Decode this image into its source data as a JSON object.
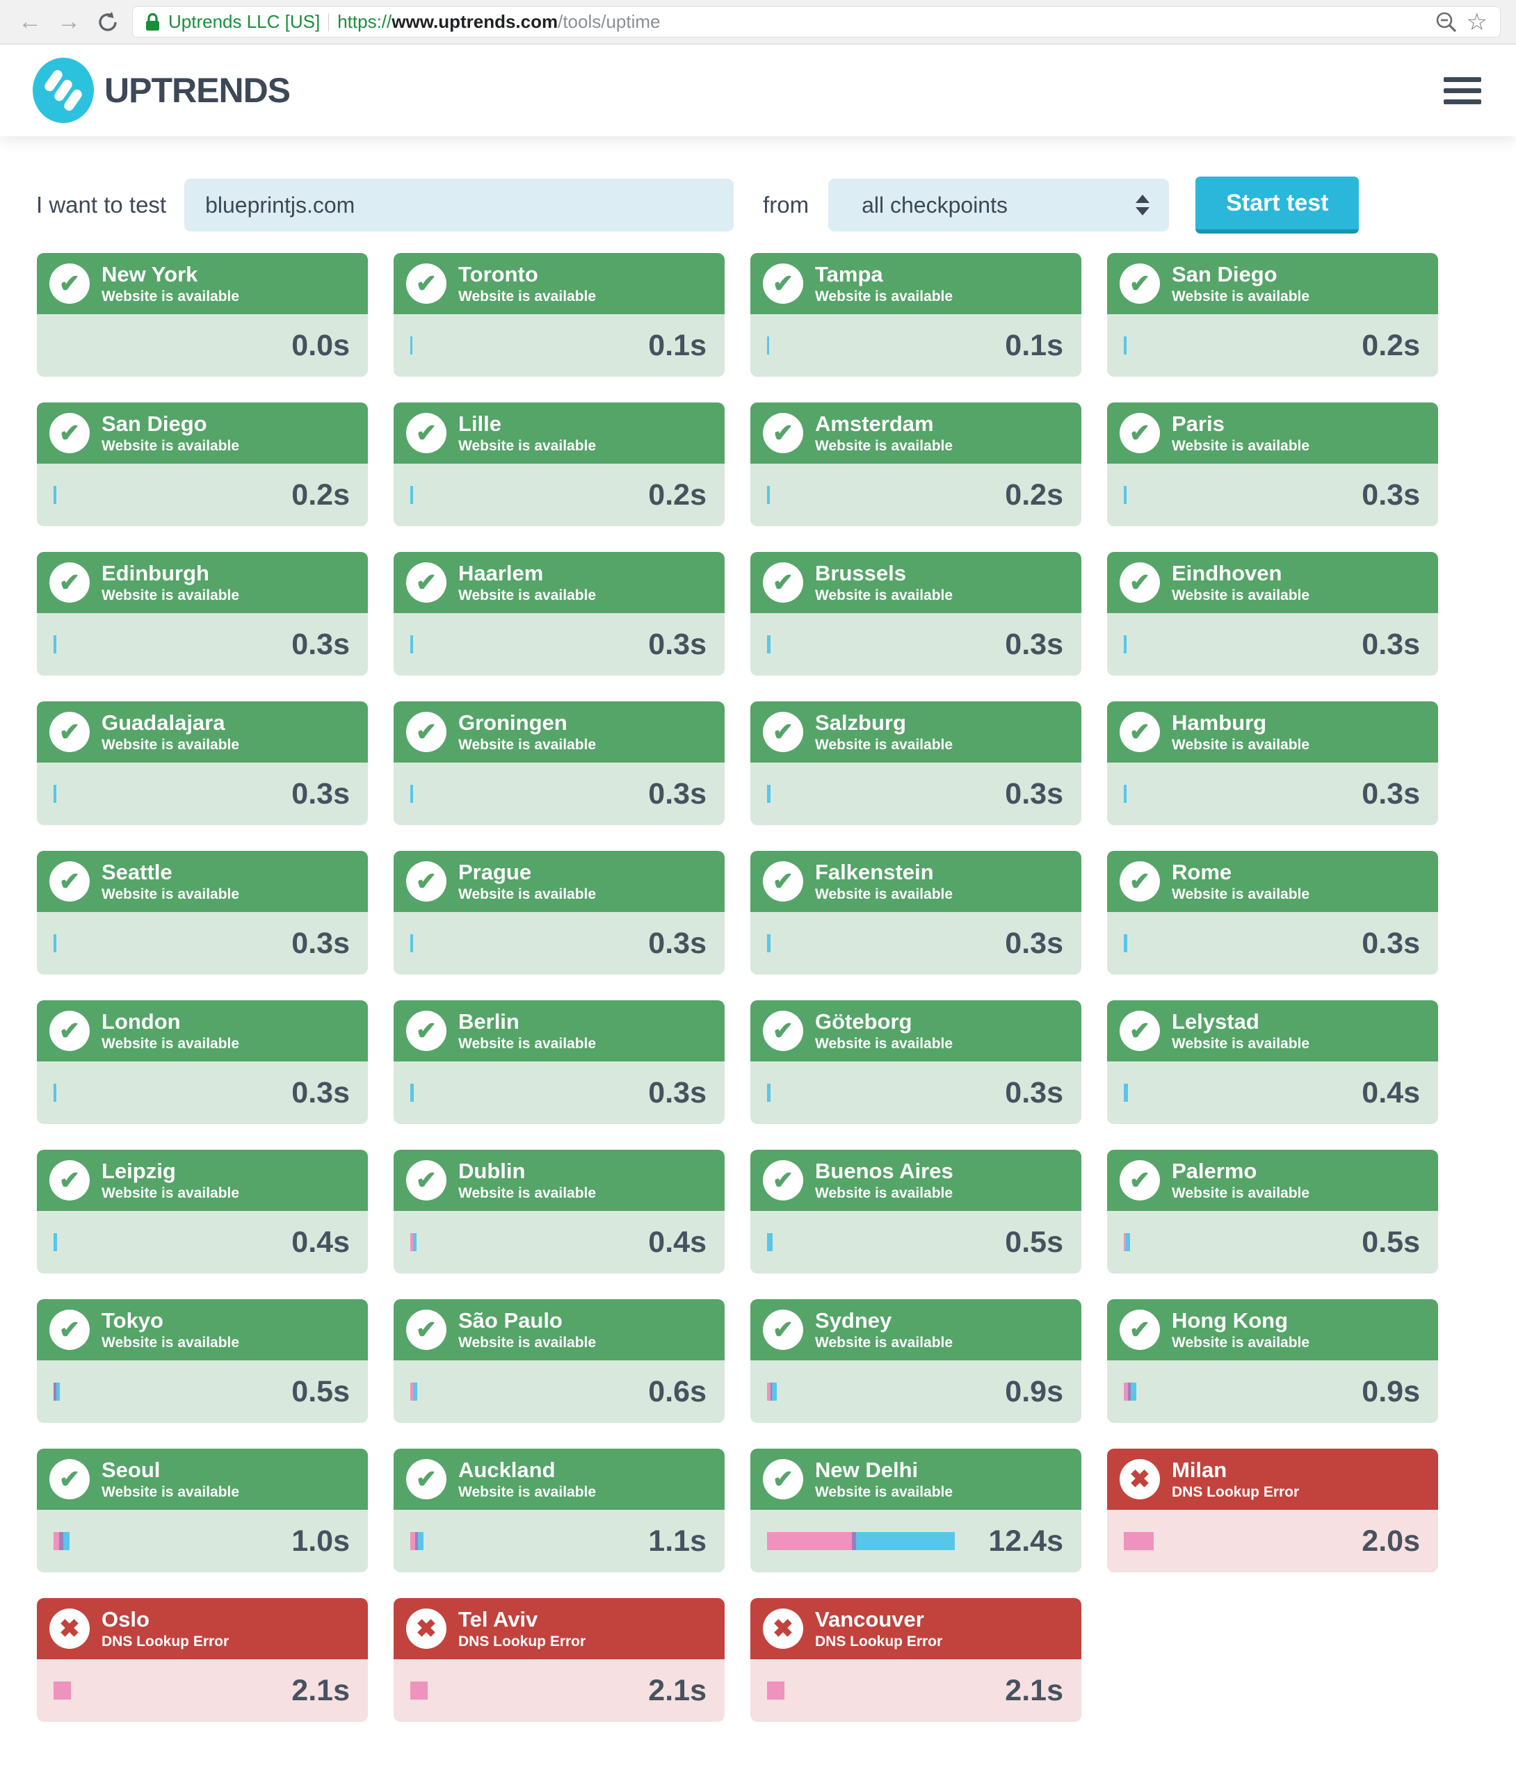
{
  "browser": {
    "ev_name": "Uptrends LLC [US]",
    "url_scheme": "https://",
    "url_host": "www.uptrends.com",
    "url_path": "/tools/uptime"
  },
  "header": {
    "brand": "UPTRENDS"
  },
  "form": {
    "label": "I want to test",
    "input_value": "blueprintjs.com",
    "from_label": "from",
    "select_value": "all checkpoints",
    "button_label": "Start test"
  },
  "icons": {
    "success_glyph": "✔",
    "error_glyph": "✖",
    "star_glyph": "☆"
  },
  "colors": {
    "header_ok": "#55a468",
    "body_ok": "#d9e8dc",
    "header_error": "#c2423d",
    "body_error": "#f6e0e1",
    "bar_blue": "#57c6e9",
    "bar_pink": "#ef92bd",
    "bar_purple": "#9b7ec0",
    "accent_button": "#2ab7d9",
    "input_bg": "#ddedf4",
    "brand_dark": "#3d4857",
    "logo_teal": "#2cc2de",
    "ev_green": "#1a8e3c"
  },
  "cards": [
    {
      "city": "New York",
      "status": "Website is available",
      "time": "0.0s",
      "state": "ok",
      "bar": []
    },
    {
      "city": "Toronto",
      "status": "Website is available",
      "time": "0.1s",
      "state": "ok",
      "bar": [
        {
          "c": "blue",
          "w": 3
        }
      ]
    },
    {
      "city": "Tampa",
      "status": "Website is available",
      "time": "0.1s",
      "state": "ok",
      "bar": [
        {
          "c": "blue",
          "w": 3
        }
      ]
    },
    {
      "city": "San Diego",
      "status": "Website is available",
      "time": "0.2s",
      "state": "ok",
      "bar": [
        {
          "c": "blue",
          "w": 4
        }
      ]
    },
    {
      "city": "San Diego",
      "status": "Website is available",
      "time": "0.2s",
      "state": "ok",
      "bar": [
        {
          "c": "blue",
          "w": 4
        }
      ]
    },
    {
      "city": "Lille",
      "status": "Website is available",
      "time": "0.2s",
      "state": "ok",
      "bar": [
        {
          "c": "blue",
          "w": 4
        }
      ]
    },
    {
      "city": "Amsterdam",
      "status": "Website is available",
      "time": "0.2s",
      "state": "ok",
      "bar": [
        {
          "c": "blue",
          "w": 4
        }
      ]
    },
    {
      "city": "Paris",
      "status": "Website is available",
      "time": "0.3s",
      "state": "ok",
      "bar": [
        {
          "c": "blue",
          "w": 4
        }
      ]
    },
    {
      "city": "Edinburgh",
      "status": "Website is available",
      "time": "0.3s",
      "state": "ok",
      "bar": [
        {
          "c": "blue",
          "w": 4
        }
      ]
    },
    {
      "city": "Haarlem",
      "status": "Website is available",
      "time": "0.3s",
      "state": "ok",
      "bar": [
        {
          "c": "blue",
          "w": 4
        }
      ]
    },
    {
      "city": "Brussels",
      "status": "Website is available",
      "time": "0.3s",
      "state": "ok",
      "bar": [
        {
          "c": "blue",
          "w": 5
        }
      ]
    },
    {
      "city": "Eindhoven",
      "status": "Website is available",
      "time": "0.3s",
      "state": "ok",
      "bar": [
        {
          "c": "blue",
          "w": 4
        }
      ]
    },
    {
      "city": "Guadalajara",
      "status": "Website is available",
      "time": "0.3s",
      "state": "ok",
      "bar": [
        {
          "c": "blue",
          "w": 4
        }
      ]
    },
    {
      "city": "Groningen",
      "status": "Website is available",
      "time": "0.3s",
      "state": "ok",
      "bar": [
        {
          "c": "blue",
          "w": 4
        }
      ]
    },
    {
      "city": "Salzburg",
      "status": "Website is available",
      "time": "0.3s",
      "state": "ok",
      "bar": [
        {
          "c": "blue",
          "w": 5
        }
      ]
    },
    {
      "city": "Hamburg",
      "status": "Website is available",
      "time": "0.3s",
      "state": "ok",
      "bar": [
        {
          "c": "blue",
          "w": 4
        }
      ]
    },
    {
      "city": "Seattle",
      "status": "Website is available",
      "time": "0.3s",
      "state": "ok",
      "bar": [
        {
          "c": "blue",
          "w": 4
        }
      ]
    },
    {
      "city": "Prague",
      "status": "Website is available",
      "time": "0.3s",
      "state": "ok",
      "bar": [
        {
          "c": "blue",
          "w": 4
        }
      ]
    },
    {
      "city": "Falkenstein",
      "status": "Website is available",
      "time": "0.3s",
      "state": "ok",
      "bar": [
        {
          "c": "blue",
          "w": 5
        }
      ]
    },
    {
      "city": "Rome",
      "status": "Website is available",
      "time": "0.3s",
      "state": "ok",
      "bar": [
        {
          "c": "blue",
          "w": 5
        }
      ]
    },
    {
      "city": "London",
      "status": "Website is available",
      "time": "0.3s",
      "state": "ok",
      "bar": [
        {
          "c": "blue",
          "w": 4
        }
      ]
    },
    {
      "city": "Berlin",
      "status": "Website is available",
      "time": "0.3s",
      "state": "ok",
      "bar": [
        {
          "c": "blue",
          "w": 5
        }
      ]
    },
    {
      "city": "Göteborg",
      "status": "Website is available",
      "time": "0.3s",
      "state": "ok",
      "bar": [
        {
          "c": "blue",
          "w": 5
        }
      ]
    },
    {
      "city": "Lelystad",
      "status": "Website is available",
      "time": "0.4s",
      "state": "ok",
      "bar": [
        {
          "c": "blue",
          "w": 6
        }
      ]
    },
    {
      "city": "Leipzig",
      "status": "Website is available",
      "time": "0.4s",
      "state": "ok",
      "bar": [
        {
          "c": "blue",
          "w": 5
        }
      ]
    },
    {
      "city": "Dublin",
      "status": "Website is available",
      "time": "0.4s",
      "state": "ok",
      "bar": [
        {
          "c": "pink",
          "w": 4
        },
        {
          "c": "blue",
          "w": 5
        }
      ]
    },
    {
      "city": "Buenos Aires",
      "status": "Website is available",
      "time": "0.5s",
      "state": "ok",
      "bar": [
        {
          "c": "blue",
          "w": 8
        }
      ]
    },
    {
      "city": "Palermo",
      "status": "Website is available",
      "time": "0.5s",
      "state": "ok",
      "bar": [
        {
          "c": "pink",
          "w": 3
        },
        {
          "c": "blue",
          "w": 6
        }
      ]
    },
    {
      "city": "Tokyo",
      "status": "Website is available",
      "time": "0.5s",
      "state": "ok",
      "bar": [
        {
          "c": "purple",
          "w": 4
        },
        {
          "c": "blue",
          "w": 5
        }
      ]
    },
    {
      "city": "São Paulo",
      "status": "Website is available",
      "time": "0.6s",
      "state": "ok",
      "bar": [
        {
          "c": "pink",
          "w": 4
        },
        {
          "c": "blue",
          "w": 6
        }
      ]
    },
    {
      "city": "Sydney",
      "status": "Website is available",
      "time": "0.9s",
      "state": "ok",
      "bar": [
        {
          "c": "pink",
          "w": 5
        },
        {
          "c": "purple",
          "w": 2
        },
        {
          "c": "blue",
          "w": 7
        }
      ]
    },
    {
      "city": "Hong Kong",
      "status": "Website is available",
      "time": "0.9s",
      "state": "ok",
      "bar": [
        {
          "c": "pink",
          "w": 6
        },
        {
          "c": "purple",
          "w": 4
        },
        {
          "c": "blue",
          "w": 8
        }
      ]
    },
    {
      "city": "Seoul",
      "status": "Website is available",
      "time": "1.0s",
      "state": "ok",
      "bar": [
        {
          "c": "pink",
          "w": 8
        },
        {
          "c": "purple",
          "w": 6
        },
        {
          "c": "blue",
          "w": 9
        }
      ]
    },
    {
      "city": "Auckland",
      "status": "Website is available",
      "time": "1.1s",
      "state": "ok",
      "bar": [
        {
          "c": "pink",
          "w": 7
        },
        {
          "c": "purple",
          "w": 4
        },
        {
          "c": "blue",
          "w": 8
        }
      ]
    },
    {
      "city": "New Delhi",
      "status": "Website is available",
      "time": "12.4s",
      "state": "ok",
      "bar": [
        {
          "c": "pink",
          "w": 122
        },
        {
          "c": "purple",
          "w": 6
        },
        {
          "c": "blue",
          "w": 142
        }
      ]
    },
    {
      "city": "Milan",
      "status": "DNS Lookup Error",
      "time": "2.0s",
      "state": "error",
      "bar": [
        {
          "c": "pink",
          "w": 43
        }
      ]
    },
    {
      "city": "Oslo",
      "status": "DNS Lookup Error",
      "time": "2.1s",
      "state": "error",
      "bar": [
        {
          "c": "pink",
          "w": 25
        }
      ]
    },
    {
      "city": "Tel Aviv",
      "status": "DNS Lookup Error",
      "time": "2.1s",
      "state": "error",
      "bar": [
        {
          "c": "pink",
          "w": 25
        }
      ]
    },
    {
      "city": "Vancouver",
      "status": "DNS Lookup Error",
      "time": "2.1s",
      "state": "error",
      "bar": [
        {
          "c": "pink",
          "w": 25
        }
      ]
    }
  ]
}
